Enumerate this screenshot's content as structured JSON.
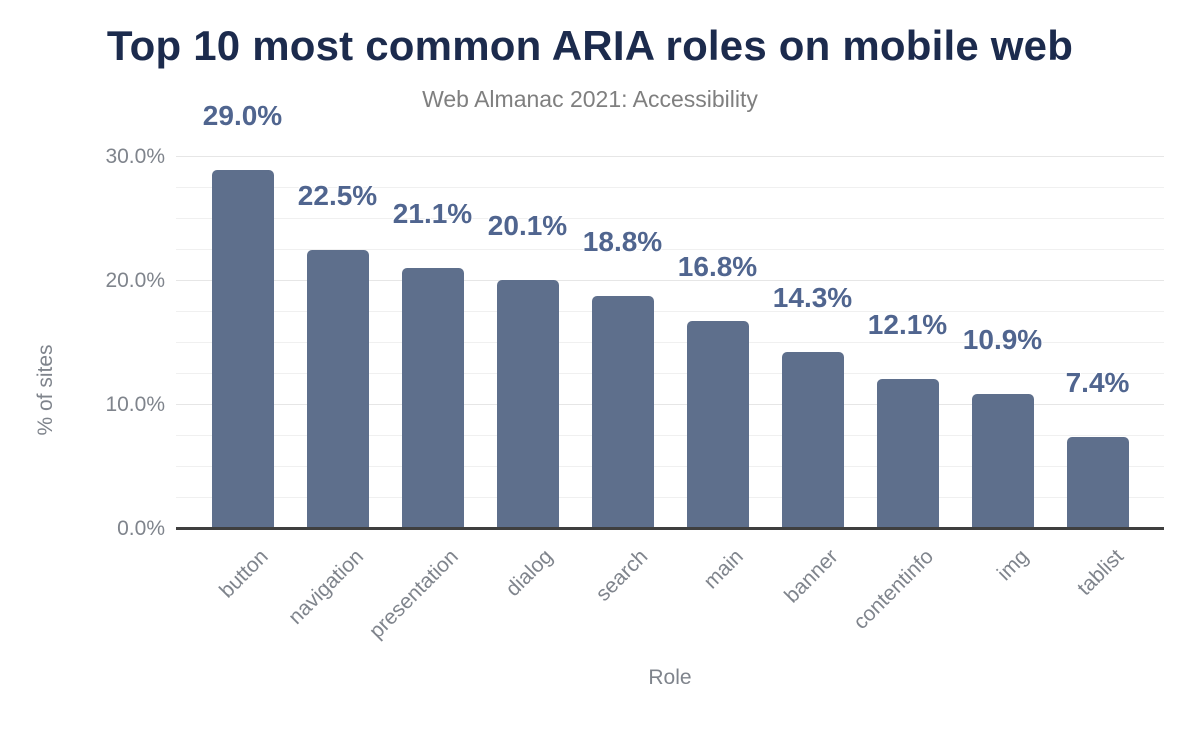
{
  "page": {
    "background": "#ffffff"
  },
  "chart_data": {
    "type": "bar",
    "title": "Top 10 most common ARIA roles on mobile web",
    "subtitle": "Web Almanac 2021: Accessibility",
    "xlabel": "Role",
    "ylabel": "% of sites",
    "categories": [
      "button",
      "navigation",
      "presentation",
      "dialog",
      "search",
      "main",
      "banner",
      "contentinfo",
      "img",
      "tablist"
    ],
    "values": [
      29.0,
      22.5,
      21.1,
      20.1,
      18.8,
      16.8,
      14.3,
      12.1,
      10.9,
      7.4
    ],
    "value_labels": [
      "29.0%",
      "22.5%",
      "21.1%",
      "20.1%",
      "18.8%",
      "16.8%",
      "14.3%",
      "12.1%",
      "10.9%",
      "7.4%"
    ],
    "ylim": [
      0,
      32.2
    ],
    "yticks": [
      {
        "value": 0,
        "label": "0.0%"
      },
      {
        "value": 10,
        "label": "10.0%"
      },
      {
        "value": 20,
        "label": "20.0%"
      },
      {
        "value": 30,
        "label": "30.0%"
      }
    ],
    "minor_grid_step": 2.5,
    "grid": true,
    "legend": "none",
    "colors": {
      "bar": "#5e6f8c",
      "value_label": "#50658f",
      "title": "#1c2b4d",
      "subtitle": "#7f7f7f",
      "axis_text": "#7f848c",
      "axis_line": "#3f3f3f",
      "grid_major": "#e6e6e6",
      "grid_minor": "#f0f0f0"
    }
  }
}
